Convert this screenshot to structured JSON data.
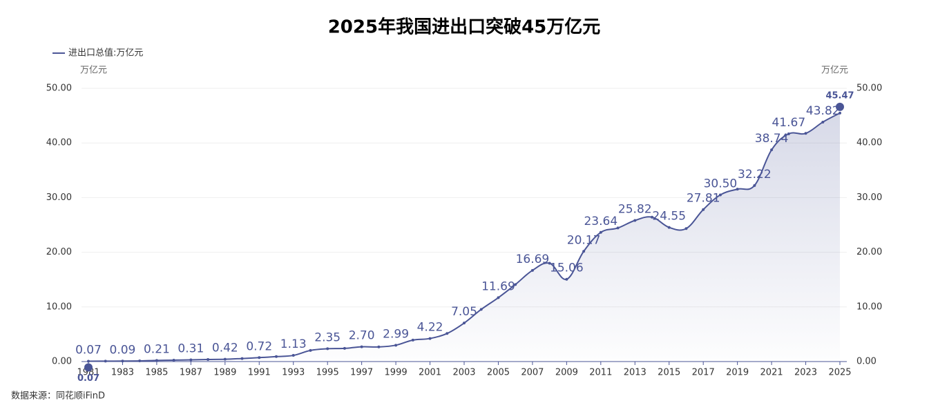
{
  "chart_data": {
    "type": "area",
    "title": "2025年我国进出口突破45万亿元",
    "y_axis_label": "万亿元",
    "y2_axis_label": "万亿元",
    "source": "数据来源：同花顺iFinD",
    "x": [
      1981,
      1982,
      1983,
      1984,
      1985,
      1986,
      1987,
      1988,
      1989,
      1990,
      1991,
      1992,
      1993,
      1994,
      1995,
      1996,
      1997,
      1998,
      1999,
      2000,
      2001,
      2002,
      2003,
      2004,
      2005,
      2006,
      2007,
      2008,
      2009,
      2010,
      2011,
      2012,
      2013,
      2014,
      2015,
      2016,
      2017,
      2018,
      2019,
      2020,
      2021,
      2022,
      2023,
      2024,
      2025
    ],
    "xlim": [
      1981,
      2025
    ],
    "xticks": [
      1981,
      1983,
      1985,
      1987,
      1989,
      1991,
      1993,
      1995,
      1997,
      1999,
      2001,
      2003,
      2005,
      2007,
      2009,
      2011,
      2013,
      2015,
      2017,
      2019,
      2021,
      2023,
      2025
    ],
    "series": [
      {
        "name": "进出口总值:万亿元",
        "color": "#4a5596",
        "values": [
          0.07,
          0.08,
          0.09,
          0.12,
          0.21,
          0.26,
          0.31,
          0.38,
          0.42,
          0.56,
          0.72,
          0.91,
          1.13,
          2.04,
          2.35,
          2.41,
          2.7,
          2.68,
          2.99,
          3.93,
          4.22,
          5.14,
          7.05,
          9.55,
          11.69,
          14.1,
          16.69,
          17.99,
          15.06,
          20.17,
          23.64,
          24.44,
          25.82,
          26.42,
          24.55,
          24.34,
          27.81,
          30.5,
          31.55,
          32.22,
          38.74,
          41.67,
          41.76,
          43.82,
          45.47
        ],
        "value_labels": [
          "0.07",
          null,
          "0.09",
          null,
          "0.21",
          null,
          "0.31",
          null,
          "0.42",
          null,
          "0.72",
          null,
          "1.13",
          null,
          "2.35",
          null,
          "2.70",
          null,
          "2.99",
          null,
          "4.22",
          null,
          "7.05",
          null,
          "11.69",
          null,
          "16.69",
          null,
          "15.06",
          "20.17",
          "23.64",
          null,
          "25.82",
          null,
          "24.55",
          null,
          "27.81",
          "30.50",
          null,
          "32.22",
          "38.74",
          "41.67",
          null,
          "43.82",
          "45.47"
        ]
      }
    ],
    "ylim": [
      0,
      50
    ],
    "yticks": [
      {
        "value": 0,
        "label": "0.00"
      },
      {
        "value": 10,
        "label": "10.00"
      },
      {
        "value": 20,
        "label": "20.00"
      },
      {
        "value": 30,
        "label": "30.00"
      },
      {
        "value": 40,
        "label": "40.00"
      },
      {
        "value": 50,
        "label": "50.00"
      }
    ],
    "y2lim": [
      0,
      50
    ],
    "y2ticks": [
      {
        "value": 0,
        "label": "0.00"
      },
      {
        "value": 10,
        "label": "10.00"
      },
      {
        "value": 20,
        "label": "20.00"
      },
      {
        "value": 30,
        "label": "30.00"
      },
      {
        "value": 40,
        "label": "40.00"
      },
      {
        "value": 50,
        "label": "50.00"
      }
    ],
    "grid": true
  }
}
